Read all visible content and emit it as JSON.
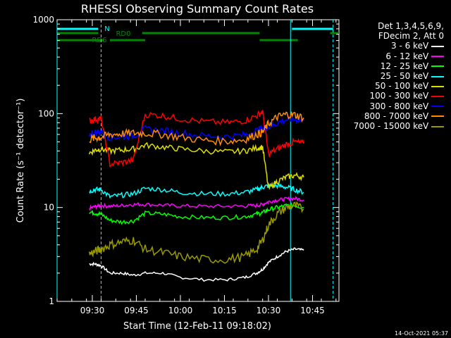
{
  "chart_data": {
    "type": "line",
    "title": "RHESSI Observing Summary Count Rates",
    "xlabel": "Start Time (12-Feb-11 09:18:02)",
    "ylabel": "Count Rate (s⁻¹ detector⁻¹)",
    "yscale": "log",
    "ylim": [
      1,
      1000
    ],
    "xlim_minutes": [
      0,
      96
    ],
    "y_ticks": [
      "1",
      "10",
      "100",
      "1000"
    ],
    "x_ticks": [
      {
        "label": "09:30",
        "minute": 12
      },
      {
        "label": "09:45",
        "minute": 27
      },
      {
        "label": "10:00",
        "minute": 42
      },
      {
        "label": "10:15",
        "minute": 57
      },
      {
        "label": "10:30",
        "minute": 72
      },
      {
        "label": "10:45",
        "minute": 87
      }
    ],
    "legend_header": [
      "Det 1,3,4,5,6,9,",
      "FDecim 2, Att 0"
    ],
    "flags": [
      {
        "label": "N",
        "color": "#00ffff",
        "segments": [
          [
            0,
            14
          ],
          [
            80,
            94
          ]
        ]
      },
      {
        "label": "RD0",
        "color": "#008800",
        "segments": [
          [
            0,
            14
          ],
          [
            29,
            69
          ],
          [
            93,
            96
          ]
        ]
      },
      {
        "label": "RD6",
        "color": "#008800",
        "segments": [
          [
            0,
            16
          ],
          [
            18,
            30
          ],
          [
            69,
            82
          ]
        ]
      }
    ],
    "vlines": [
      {
        "minute": 0,
        "color": "#00ffff",
        "style": "solid"
      },
      {
        "minute": 15,
        "color": "#00ffff",
        "style": "dashed"
      },
      {
        "minute": 79.5,
        "color": "#00ffff",
        "style": "solid"
      },
      {
        "minute": 94,
        "color": "#00ffff",
        "style": "dashed"
      }
    ],
    "series": [
      {
        "name": "3 - 6 keV",
        "color": "#ffffff",
        "x": [
          11,
          13,
          15,
          18,
          22,
          26,
          30,
          36,
          42,
          50,
          58,
          64,
          68,
          70,
          72,
          75,
          78,
          81,
          84
        ],
        "y": [
          2.5,
          2.5,
          2.4,
          2.0,
          2.0,
          1.9,
          2.0,
          2.0,
          1.8,
          1.7,
          1.7,
          1.8,
          2.0,
          2.2,
          2.6,
          3.0,
          3.4,
          3.6,
          3.5
        ]
      },
      {
        "name": "6 - 12 keV",
        "color": "#ff00ff",
        "x": [
          11,
          13,
          15,
          18,
          22,
          26,
          30,
          36,
          42,
          50,
          58,
          64,
          68,
          70,
          72,
          75,
          78,
          81,
          84
        ],
        "y": [
          9.8,
          10.2,
          10.5,
          10.3,
          10.5,
          10.8,
          10.8,
          10.6,
          10.4,
          10.3,
          10.3,
          10.4,
          10.5,
          10.8,
          11.5,
          12.0,
          12.3,
          12.5,
          12.0
        ]
      },
      {
        "name": "12 - 25 keV",
        "color": "#00ff00",
        "x": [
          11,
          13,
          15,
          18,
          22,
          26,
          30,
          36,
          42,
          50,
          58,
          64,
          68,
          70,
          72,
          75,
          78,
          81,
          84
        ],
        "y": [
          9.0,
          8.7,
          8.5,
          7.3,
          7.0,
          7.2,
          8.7,
          8.5,
          8.0,
          7.8,
          7.8,
          8.0,
          8.5,
          8.8,
          9.5,
          10.0,
          10.5,
          10.5,
          10.0
        ]
      },
      {
        "name": "25 - 50 keV",
        "color": "#00ffff",
        "x": [
          11,
          13,
          15,
          18,
          22,
          26,
          30,
          36,
          42,
          50,
          58,
          64,
          68,
          70,
          72,
          75,
          78,
          81,
          84
        ],
        "y": [
          15.0,
          15.5,
          15.5,
          13.0,
          13.5,
          14.0,
          16.0,
          15.5,
          14.5,
          14.0,
          14.0,
          14.5,
          15.5,
          16.5,
          17.0,
          17.0,
          16.5,
          15.5,
          14.5
        ]
      },
      {
        "name": "50 - 100 keV",
        "color": "#dddd00",
        "x": [
          11,
          13,
          15,
          18,
          22,
          26,
          30,
          36,
          42,
          50,
          58,
          64,
          68,
          70,
          72,
          75,
          78,
          81,
          84
        ],
        "y": [
          38,
          41,
          42,
          40,
          41,
          42,
          46,
          44,
          42,
          40,
          39,
          40,
          43,
          44,
          16,
          19,
          21,
          22,
          21
        ]
      },
      {
        "name": "100 - 300 keV",
        "color": "#ff0000",
        "x": [
          11,
          13,
          15,
          18,
          22,
          26,
          30,
          36,
          42,
          50,
          58,
          64,
          68,
          70,
          72,
          75,
          78,
          81,
          84
        ],
        "y": [
          84,
          87,
          88,
          29,
          30,
          32,
          98,
          95,
          88,
          82,
          80,
          84,
          95,
          105,
          37,
          42,
          47,
          50,
          48
        ]
      },
      {
        "name": "300 - 800 keV",
        "color": "#0000ff",
        "x": [
          11,
          13,
          15,
          18,
          22,
          26,
          30,
          36,
          42,
          50,
          58,
          64,
          68,
          70,
          72,
          75,
          78,
          81,
          84
        ],
        "y": [
          60,
          63,
          64,
          56,
          57,
          58,
          68,
          66,
          62,
          58,
          57,
          59,
          66,
          70,
          72,
          80,
          86,
          87,
          84
        ]
      },
      {
        "name": "800 - 7000 keV",
        "color": "#ff8c00",
        "x": [
          11,
          13,
          15,
          18,
          22,
          26,
          30,
          36,
          42,
          50,
          58,
          64,
          68,
          70,
          72,
          75,
          78,
          81,
          84
        ],
        "y": [
          53,
          55,
          56,
          60,
          61,
          62,
          62,
          60,
          56,
          52,
          51,
          53,
          60,
          63,
          78,
          92,
          98,
          97,
          90
        ]
      },
      {
        "name": "7000 - 15000 keV",
        "color": "#999900",
        "x": [
          11,
          13,
          15,
          18,
          22,
          26,
          30,
          36,
          42,
          50,
          58,
          64,
          68,
          70,
          72,
          75,
          78,
          81,
          84
        ],
        "y": [
          3.2,
          3.4,
          3.6,
          4.0,
          4.3,
          4.5,
          3.6,
          3.3,
          3.0,
          2.8,
          2.8,
          3.0,
          3.6,
          4.5,
          6.5,
          8.5,
          10.0,
          10.5,
          9.5
        ]
      }
    ]
  },
  "footer": {
    "timestamp": "14-Oct-2021 05:37"
  }
}
